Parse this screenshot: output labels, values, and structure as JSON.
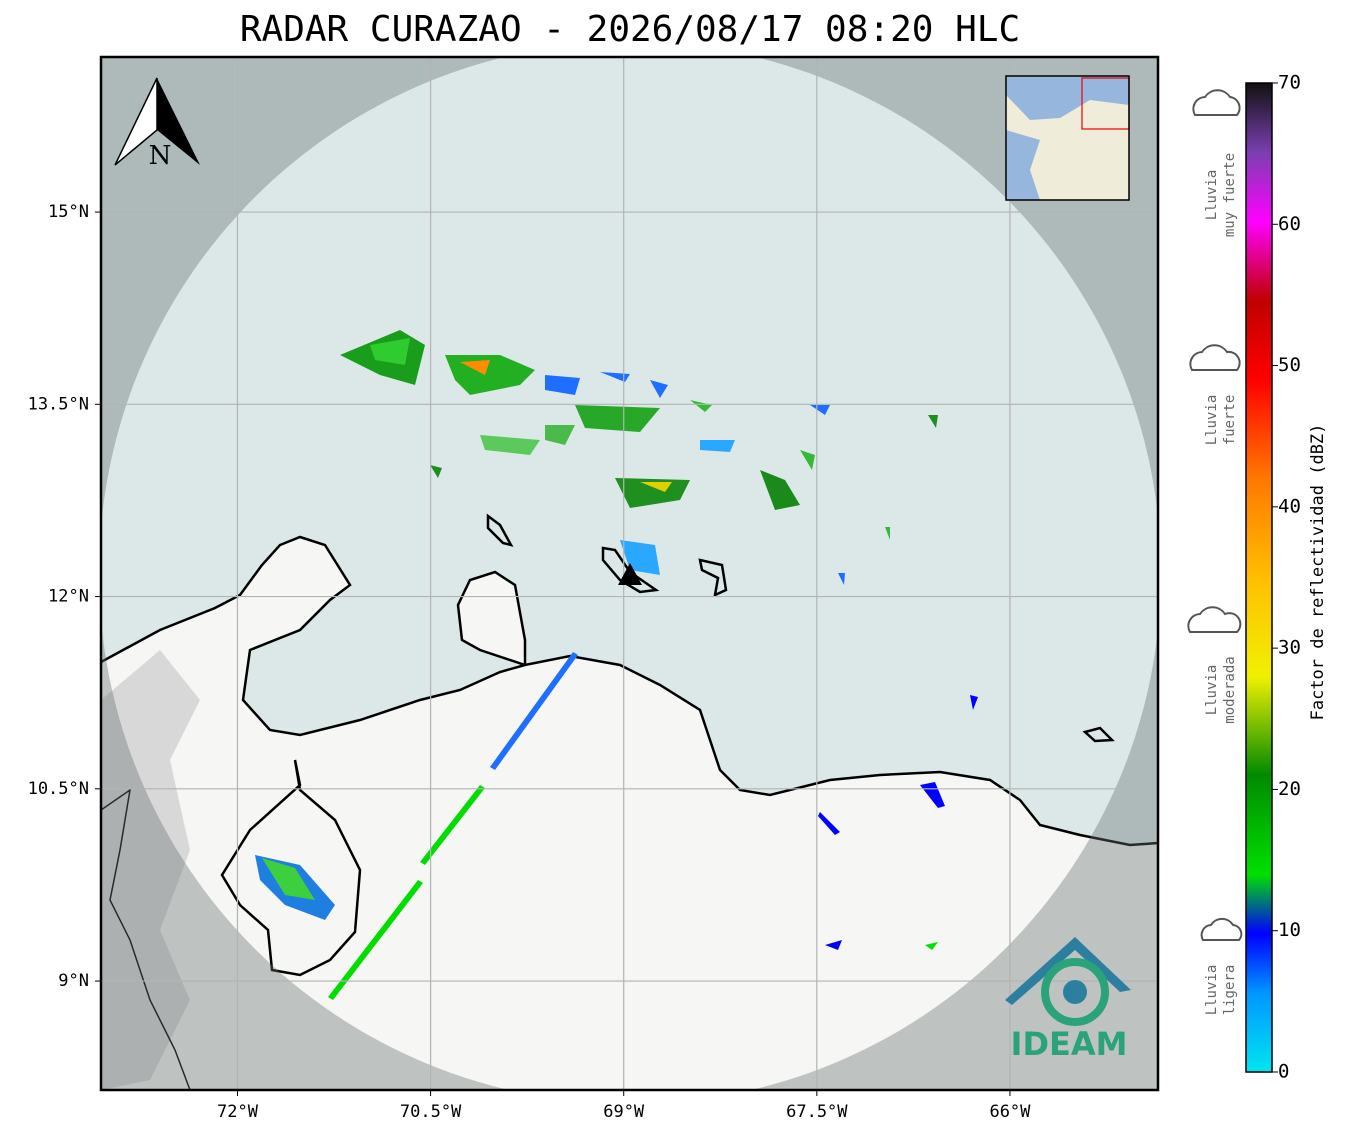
{
  "chart_data": {
    "type": "map",
    "title": "RADAR CURAZAO - 2026/08/17 08:20 HLC",
    "xlim": [
      -73.06,
      -64.85
    ],
    "ylim": [
      8.15,
      16.21
    ],
    "xticks": [
      {
        "value": -72,
        "label": "72°W"
      },
      {
        "value": -70.5,
        "label": "70.5°W"
      },
      {
        "value": -69,
        "label": "69°W"
      },
      {
        "value": -67.5,
        "label": "67.5°W"
      },
      {
        "value": -66,
        "label": "66°W"
      }
    ],
    "yticks": [
      {
        "value": 15,
        "label": "15°N"
      },
      {
        "value": 13.5,
        "label": "13.5°N"
      },
      {
        "value": 12,
        "label": "12°N"
      },
      {
        "value": 10.5,
        "label": "10.5°N"
      },
      {
        "value": 9,
        "label": "9°N"
      }
    ],
    "grid": true,
    "colorbar": {
      "label": "Factor de reflectividad (dBZ)",
      "lim": [
        0,
        70
      ],
      "ticks": [
        0,
        10,
        20,
        30,
        40,
        50,
        60,
        70
      ]
    },
    "north_label": "N",
    "logo": "IDEAM",
    "intensity_labels": [
      [
        "Lluvia",
        "muy fuerte"
      ],
      [
        "Lluvia",
        "fuerte"
      ],
      [
        "Lluvia",
        "moderada"
      ],
      [
        "Lluvia",
        "ligera"
      ]
    ]
  }
}
